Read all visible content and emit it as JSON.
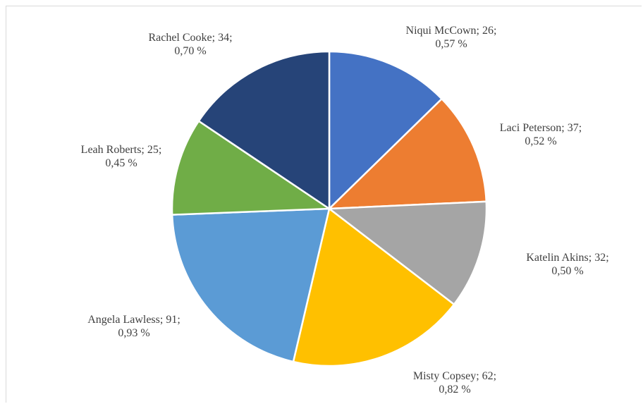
{
  "chart_data": {
    "type": "pie",
    "title": "",
    "start_angle_deg": 0,
    "direction": "clockwise",
    "slices": [
      {
        "label": "Niqui McCown; 26;",
        "pct": "0,57 %",
        "value": 26,
        "share": 0.57,
        "color": "#4472C4"
      },
      {
        "label": "Laci Peterson; 37;",
        "pct": "0,52 %",
        "value": 37,
        "share": 0.52,
        "color": "#ED7D31"
      },
      {
        "label": "Katelin Akins; 32;",
        "pct": "0,50 %",
        "value": 32,
        "share": 0.5,
        "color": "#A5A5A5"
      },
      {
        "label": "Misty Copsey; 62;",
        "pct": "0,82 %",
        "value": 62,
        "share": 0.82,
        "color": "#FFC000"
      },
      {
        "label": "Angela Lawless; 91;",
        "pct": "0,93 %",
        "value": 91,
        "share": 0.93,
        "color": "#5B9BD5"
      },
      {
        "label": "Leah Roberts; 25;",
        "pct": "0,45 %",
        "value": 25,
        "share": 0.45,
        "color": "#70AD47"
      },
      {
        "label": "Rachel Cooke; 34;",
        "pct": "0,70 %",
        "value": 34,
        "share": 0.7,
        "color": "#264478"
      }
    ]
  }
}
